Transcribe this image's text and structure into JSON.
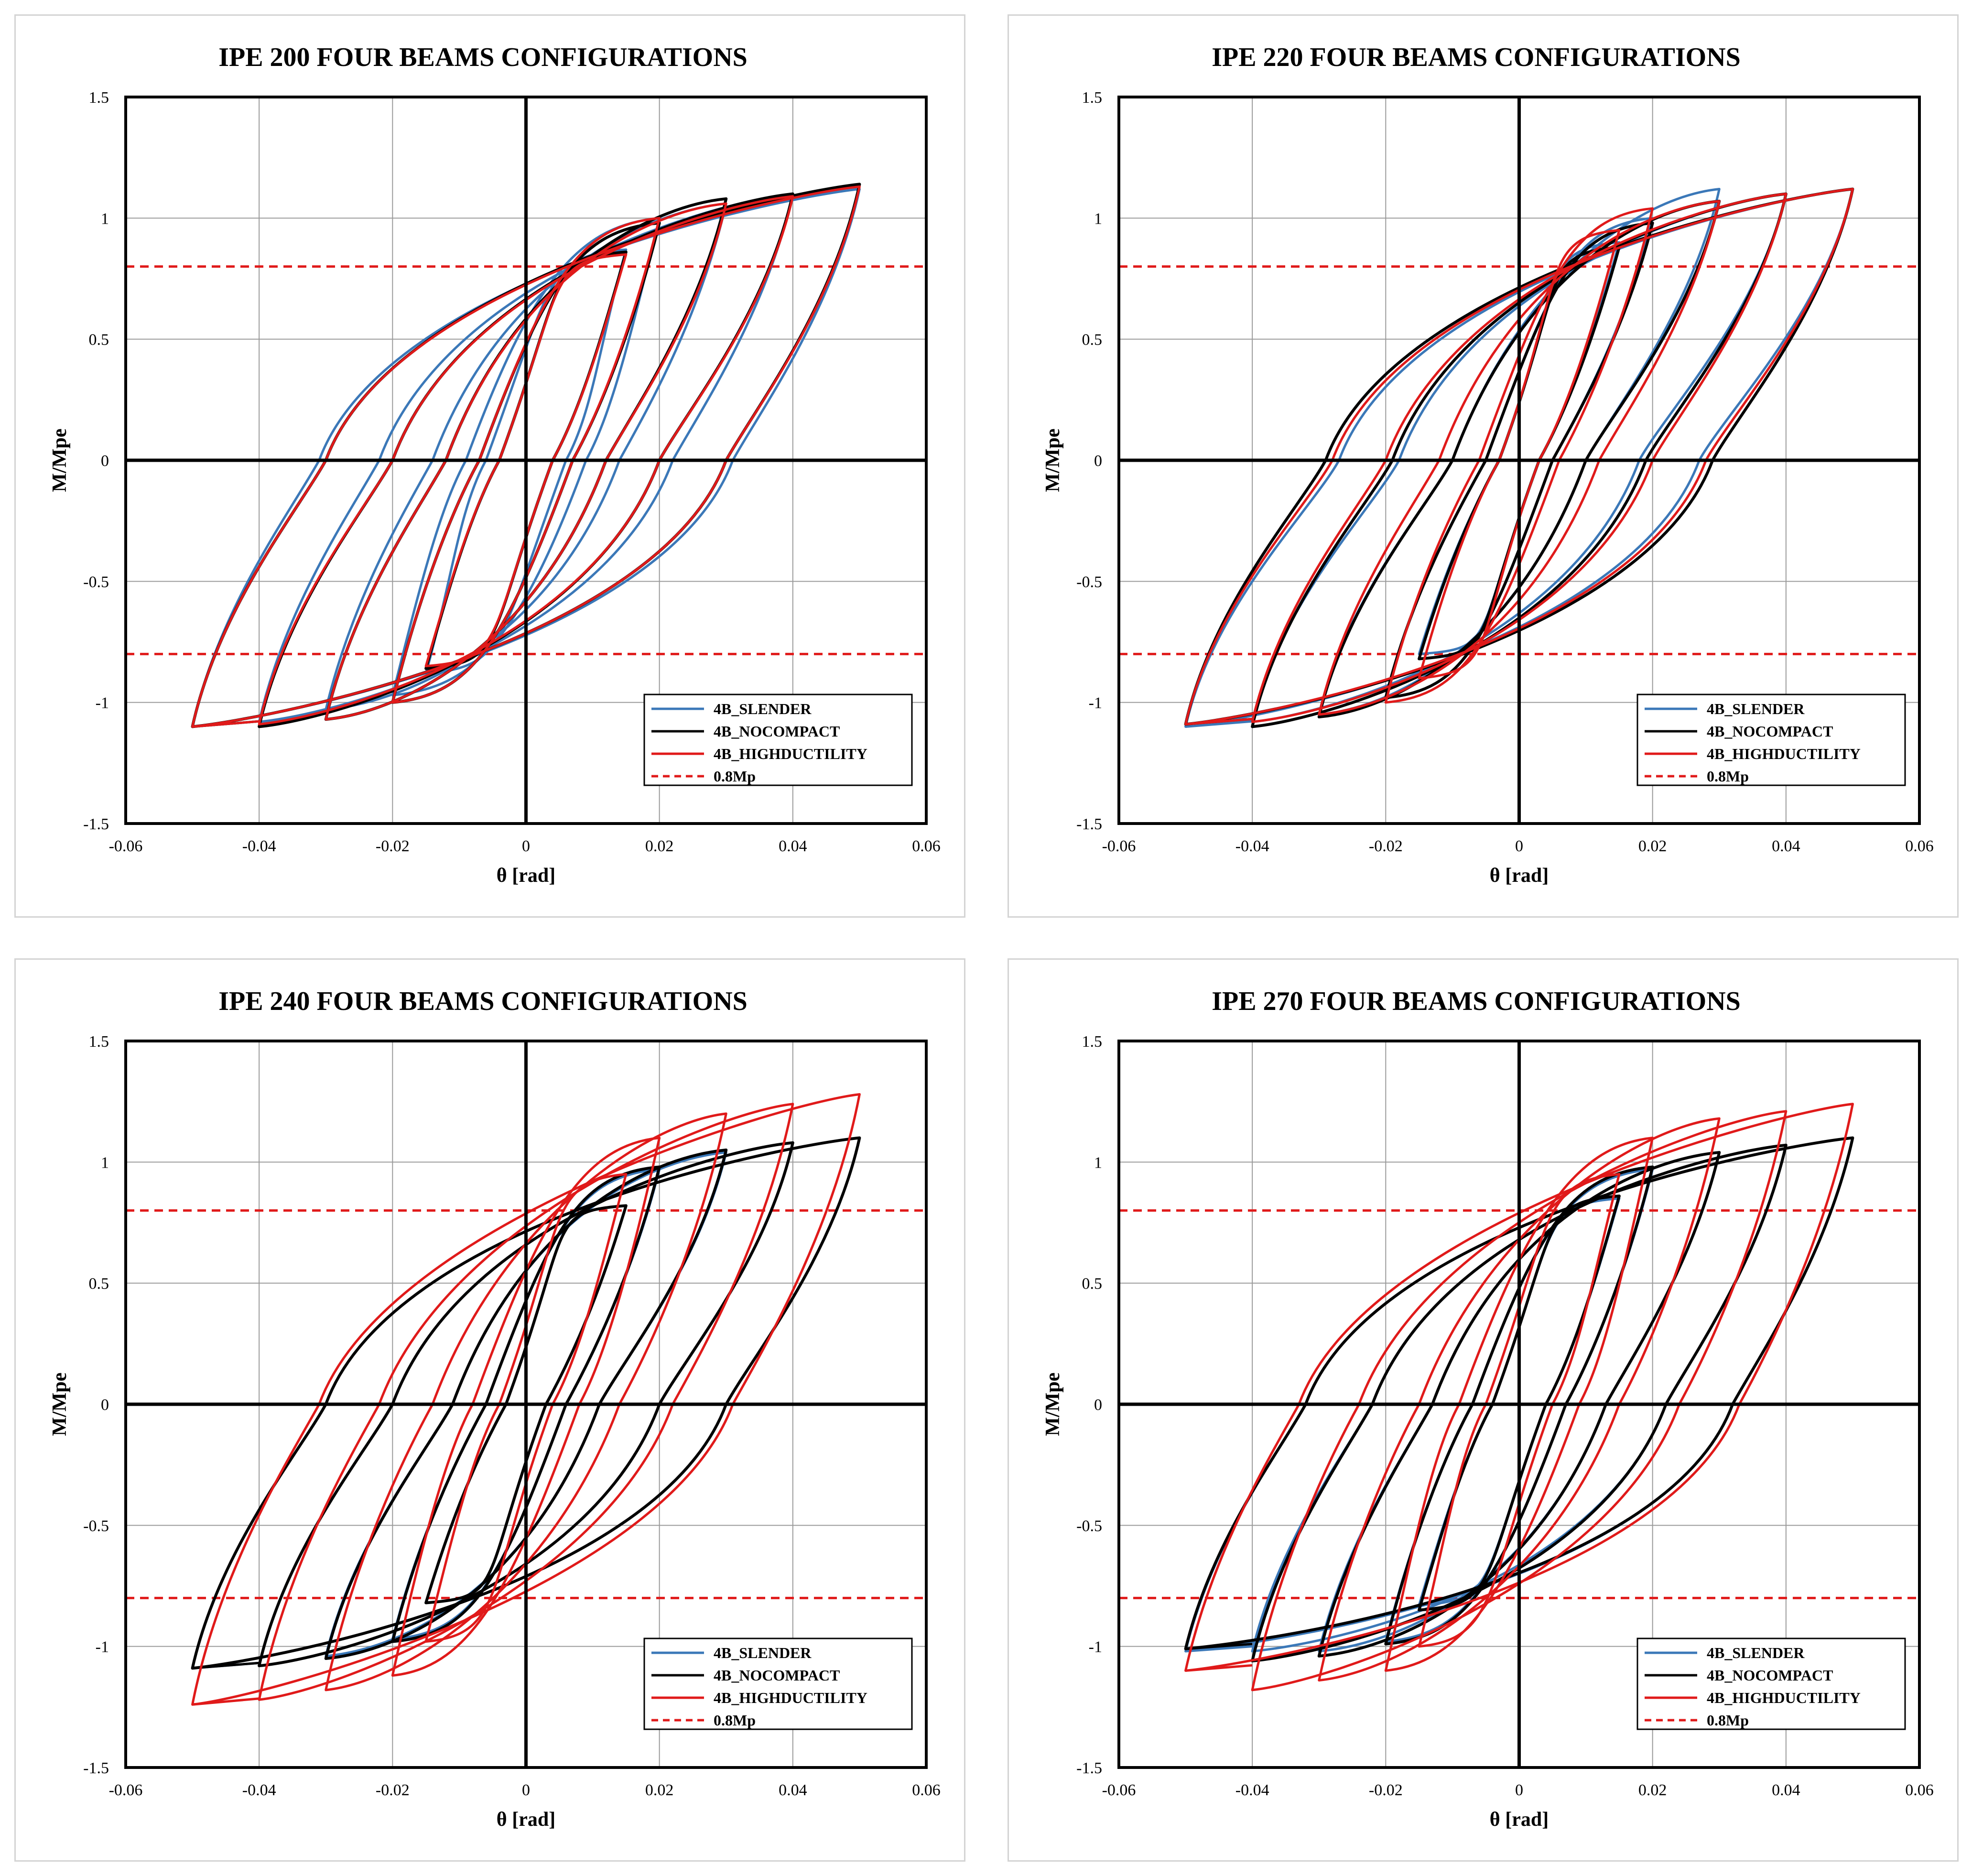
{
  "colors": {
    "slender": "#3b78b8",
    "nocompact": "#000000",
    "highductility": "#e01a1a",
    "threshold": "#e01a1a"
  },
  "chart_data": [
    {
      "type": "line",
      "title": "IPE 200 FOUR BEAMS CONFIGURATIONS",
      "xlabel": "θ [rad]",
      "ylabel": "M/Mpe",
      "xlim": [
        -0.06,
        0.06
      ],
      "ylim": [
        -1.5,
        1.5
      ],
      "xticks": [
        "-0.06",
        "-0.04",
        "-0.02",
        "0",
        "0.02",
        "0.04",
        "0.06"
      ],
      "yticks": [
        "1.5",
        "1",
        "0.5",
        "0",
        "-0.5",
        "-1",
        "-1.5"
      ],
      "legend": [
        "4B_SLENDER",
        "4B_NOCOMPACT",
        "4B_HIGHDUCTILITY",
        "0.8Mp"
      ],
      "threshold": [
        0.8,
        -0.8
      ],
      "series": [
        {
          "name": "4B_SLENDER",
          "amplitudes": [
            0.015,
            0.02,
            0.03,
            0.04,
            0.05
          ],
          "peak_pos": [
            0.87,
            1.0,
            1.06,
            1.1,
            1.12
          ],
          "peak_neg": [
            -0.88,
            -0.97,
            -1.03,
            -1.08,
            -1.1
          ],
          "zero_cross": [
            0.006,
            0.009,
            0.014,
            0.022,
            0.031
          ]
        },
        {
          "name": "4B_NOCOMPACT",
          "amplitudes": [
            0.015,
            0.02,
            0.03,
            0.04,
            0.05
          ],
          "peak_pos": [
            0.86,
            0.98,
            1.08,
            1.1,
            1.14
          ],
          "peak_neg": [
            -0.86,
            -1.0,
            -1.07,
            -1.1,
            -1.1
          ],
          "zero_cross": [
            0.004,
            0.007,
            0.012,
            0.02,
            0.03
          ]
        },
        {
          "name": "4B_HIGHDUCTILITY",
          "amplitudes": [
            0.015,
            0.02,
            0.03,
            0.04,
            0.05
          ],
          "peak_pos": [
            0.85,
            1.0,
            1.06,
            1.09,
            1.13
          ],
          "peak_neg": [
            -0.85,
            -1.0,
            -1.07,
            -1.09,
            -1.1
          ],
          "zero_cross": [
            0.004,
            0.007,
            0.012,
            0.02,
            0.03
          ]
        }
      ]
    },
    {
      "type": "line",
      "title": "IPE 220 FOUR BEAMS CONFIGURATIONS",
      "xlabel": "θ [rad]",
      "ylabel": "M/Mpe",
      "xlim": [
        -0.06,
        0.06
      ],
      "ylim": [
        -1.5,
        1.5
      ],
      "xticks": [
        "-0.06",
        "-0.04",
        "-0.02",
        "0",
        "0.02",
        "0.04",
        "0.06"
      ],
      "yticks": [
        "1.5",
        "1",
        "0.5",
        "0",
        "-0.5",
        "-1",
        "-1.5"
      ],
      "legend": [
        "4B_SLENDER",
        "4B_NOCOMPACT",
        "4B_HIGHDUCTILITY",
        "0.8Mp"
      ],
      "threshold": [
        0.8,
        -0.8
      ],
      "series": [
        {
          "name": "4B_SLENDER",
          "amplitudes": [
            0.015,
            0.02,
            0.03,
            0.04,
            0.05
          ],
          "peak_pos": [
            0.9,
            1.0,
            1.12,
            1.1,
            1.12
          ],
          "peak_neg": [
            -0.8,
            -0.98,
            -1.05,
            -1.08,
            -1.1
          ],
          "zero_cross": [
            0.003,
            0.005,
            0.01,
            0.018,
            0.027
          ]
        },
        {
          "name": "4B_NOCOMPACT",
          "amplitudes": [
            0.015,
            0.02,
            0.03,
            0.04,
            0.05
          ],
          "peak_pos": [
            0.88,
            0.98,
            1.07,
            1.1,
            1.12
          ],
          "peak_neg": [
            -0.82,
            -0.98,
            -1.06,
            -1.1,
            -1.09
          ],
          "zero_cross": [
            0.003,
            0.005,
            0.01,
            0.019,
            0.029
          ]
        },
        {
          "name": "4B_HIGHDUCTILITY",
          "amplitudes": [
            0.015,
            0.02,
            0.03,
            0.04,
            0.05
          ],
          "peak_pos": [
            0.95,
            1.04,
            1.07,
            1.1,
            1.12
          ],
          "peak_neg": [
            -0.9,
            -1.0,
            -1.05,
            -1.08,
            -1.09
          ],
          "zero_cross": [
            0.003,
            0.006,
            0.012,
            0.02,
            0.028
          ]
        }
      ]
    },
    {
      "type": "line",
      "title": "IPE 240 FOUR BEAMS CONFIGURATIONS",
      "xlabel": "θ [rad]",
      "ylabel": "M/Mpe",
      "xlim": [
        -0.06,
        0.06
      ],
      "ylim": [
        -1.5,
        1.5
      ],
      "xticks": [
        "-0.06",
        "-0.04",
        "-0.02",
        "0",
        "0.02",
        "0.04",
        "0.06"
      ],
      "yticks": [
        "1.5",
        "1",
        "0.5",
        "0",
        "-0.5",
        "-1",
        "-1.5"
      ],
      "legend": [
        "4B_SLENDER",
        "4B_NOCOMPACT",
        "4B_HIGHDUCTILITY",
        "0.8Mp"
      ],
      "threshold": [
        0.8,
        -0.8
      ],
      "series": [
        {
          "name": "4B_SLENDER",
          "amplitudes": [
            0.015,
            0.02,
            0.03,
            0.04,
            0.05
          ],
          "peak_pos": [
            0.82,
            0.97,
            1.04,
            1.08,
            1.1
          ],
          "peak_neg": [
            -0.82,
            -0.97,
            -1.04,
            -1.08,
            -1.09
          ],
          "zero_cross": [
            0.003,
            0.006,
            0.011,
            0.02,
            0.03
          ]
        },
        {
          "name": "4B_NOCOMPACT",
          "amplitudes": [
            0.015,
            0.02,
            0.03,
            0.04,
            0.05
          ],
          "peak_pos": [
            0.82,
            0.98,
            1.05,
            1.08,
            1.1
          ],
          "peak_neg": [
            -0.82,
            -0.98,
            -1.05,
            -1.08,
            -1.09
          ],
          "zero_cross": [
            0.003,
            0.006,
            0.011,
            0.02,
            0.03
          ]
        },
        {
          "name": "4B_HIGHDUCTILITY",
          "amplitudes": [
            0.015,
            0.02,
            0.03,
            0.04,
            0.05
          ],
          "peak_pos": [
            0.95,
            1.1,
            1.2,
            1.24,
            1.28
          ],
          "peak_neg": [
            -0.98,
            -1.12,
            -1.18,
            -1.22,
            -1.24
          ],
          "zero_cross": [
            0.004,
            0.008,
            0.014,
            0.022,
            0.031
          ]
        }
      ]
    },
    {
      "type": "line",
      "title": "IPE 270 FOUR BEAMS CONFIGURATIONS",
      "xlabel": "θ [rad]",
      "ylabel": "M/Mpe",
      "xlim": [
        -0.06,
        0.06
      ],
      "ylim": [
        -1.5,
        1.5
      ],
      "xticks": [
        "-0.06",
        "-0.04",
        "-0.02",
        "0",
        "0.02",
        "0.04",
        "0.06"
      ],
      "yticks": [
        "1.5",
        "1",
        "0.5",
        "0",
        "-0.5",
        "-1",
        "-1.5"
      ],
      "legend": [
        "4B_SLENDER",
        "4B_NOCOMPACT",
        "4B_HIGHDUCTILITY",
        "0.8Mp"
      ],
      "threshold": [
        0.8,
        -0.8
      ],
      "series": [
        {
          "name": "4B_SLENDER",
          "amplitudes": [
            0.015,
            0.02,
            0.03,
            0.04,
            0.05
          ],
          "peak_pos": [
            0.85,
            0.97,
            1.04,
            1.07,
            1.1
          ],
          "peak_neg": [
            -0.83,
            -0.98,
            -1.02,
            -1.02,
            -1.02
          ],
          "zero_cross": [
            0.004,
            0.007,
            0.013,
            0.022,
            0.032
          ]
        },
        {
          "name": "4B_NOCOMPACT",
          "amplitudes": [
            0.015,
            0.02,
            0.03,
            0.04,
            0.05
          ],
          "peak_pos": [
            0.86,
            0.98,
            1.04,
            1.07,
            1.1
          ],
          "peak_neg": [
            -0.85,
            -0.99,
            -1.04,
            -1.06,
            -1.01
          ],
          "zero_cross": [
            0.004,
            0.007,
            0.013,
            0.022,
            0.032
          ]
        },
        {
          "name": "4B_HIGHDUCTILITY",
          "amplitudes": [
            0.015,
            0.02,
            0.03,
            0.04,
            0.05
          ],
          "peak_pos": [
            0.95,
            1.1,
            1.18,
            1.21,
            1.24
          ],
          "peak_neg": [
            -1.0,
            -1.1,
            -1.14,
            -1.18,
            -1.1
          ],
          "zero_cross": [
            0.005,
            0.009,
            0.015,
            0.024,
            0.033
          ]
        }
      ]
    }
  ]
}
